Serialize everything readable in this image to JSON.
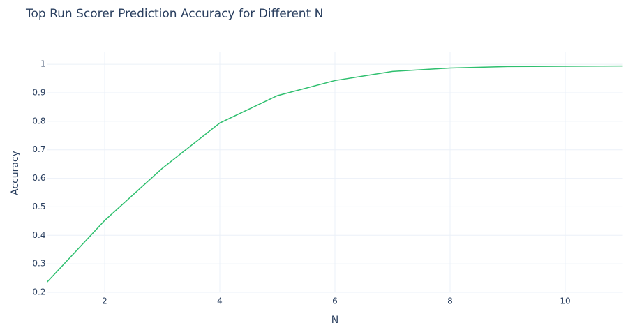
{
  "chart_data": {
    "type": "line",
    "title": "Top Run Scorer Prediction Accuracy for Different N",
    "xlabel": "N",
    "ylabel": "Accuracy",
    "x": [
      1,
      2,
      3,
      4,
      5,
      6,
      7,
      8,
      9,
      10,
      11
    ],
    "series": [
      {
        "name": "Accuracy",
        "color": "#2ebf6e",
        "values": [
          0.236,
          0.452,
          0.635,
          0.794,
          0.89,
          0.943,
          0.975,
          0.987,
          0.992,
          0.993,
          0.994
        ]
      }
    ],
    "xlim": [
      1,
      11
    ],
    "ylim": [
      0.2,
      1.042
    ],
    "xticks": [
      2,
      4,
      6,
      8,
      10
    ],
    "yticks": [
      0.2,
      0.3,
      0.4,
      0.5,
      0.6,
      0.7,
      0.8,
      0.9,
      1
    ],
    "grid": true
  }
}
